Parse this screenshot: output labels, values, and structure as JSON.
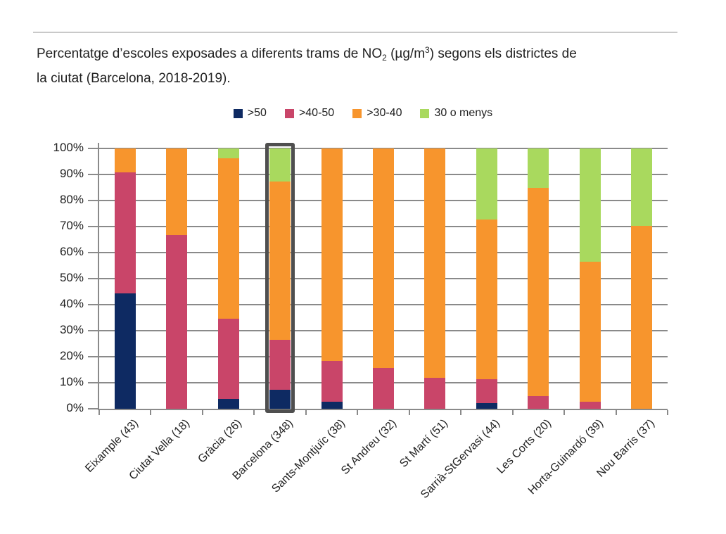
{
  "header": {
    "title_parts": {
      "line1_prefix": "Percentatge d’escoles exposades a diferents trams de NO",
      "line1_sub": "2",
      "line1_mid": " (µg/m",
      "line1_sup": "3",
      "line1_suffix": ") segons els districtes de",
      "line2": "la ciutat (Barcelona, 2018-2019)."
    }
  },
  "colors": {
    "divider": "#c9c9c9",
    "grid": "#8a8a8a",
    "axis": "#8a8a8a",
    "highlight_box": "#4f4f4f",
    "text": "#212121"
  },
  "chart_data": {
    "type": "bar",
    "stacked": true,
    "percent_stacked": true,
    "title": "Percentatge d’escoles exposades a diferents trams de NO2 (µg/m3) segons els districtes de la ciutat (Barcelona, 2018-2019).",
    "xlabel": "",
    "ylabel": "",
    "ylim": [
      0,
      100
    ],
    "ytick_step": 10,
    "ytick_suffix": "%",
    "grid": true,
    "legend_position": "top",
    "categories": [
      "Eixample (43)",
      "Ciutat Vella (18)",
      "Gràcia (26)",
      "Barcelona (348)",
      "Sants-Montjuïc (38)",
      "St Andreu (32)",
      "St Martí (51)",
      "Sarrià-StGervasi (44)",
      "Les Corts (20)",
      "Horta-Guinardó (39)",
      "Nou Barris (37)"
    ],
    "series": [
      {
        "name": ">50",
        "color": "#0e2a62",
        "values": [
          44.2,
          0,
          3.8,
          7.2,
          2.6,
          0,
          0,
          2.3,
          0,
          0,
          0
        ]
      },
      {
        "name": ">40-50",
        "color": "#c94569",
        "values": [
          46.5,
          66.7,
          30.8,
          19.2,
          15.8,
          15.6,
          11.8,
          9.1,
          5,
          2.6,
          0
        ]
      },
      {
        "name": ">30-40",
        "color": "#f7952d",
        "values": [
          9.3,
          33.3,
          61.6,
          61.0,
          81.6,
          84.4,
          88.2,
          61.3,
          80,
          53.8,
          70.3
        ]
      },
      {
        "name": "30 o menys",
        "color": "#a9d95e",
        "values": [
          0,
          0,
          3.8,
          12.6,
          0,
          0,
          0,
          27.3,
          15,
          43.6,
          29.7
        ]
      }
    ],
    "highlighted_category": "Barcelona (348)",
    "highlight_index": 3
  }
}
